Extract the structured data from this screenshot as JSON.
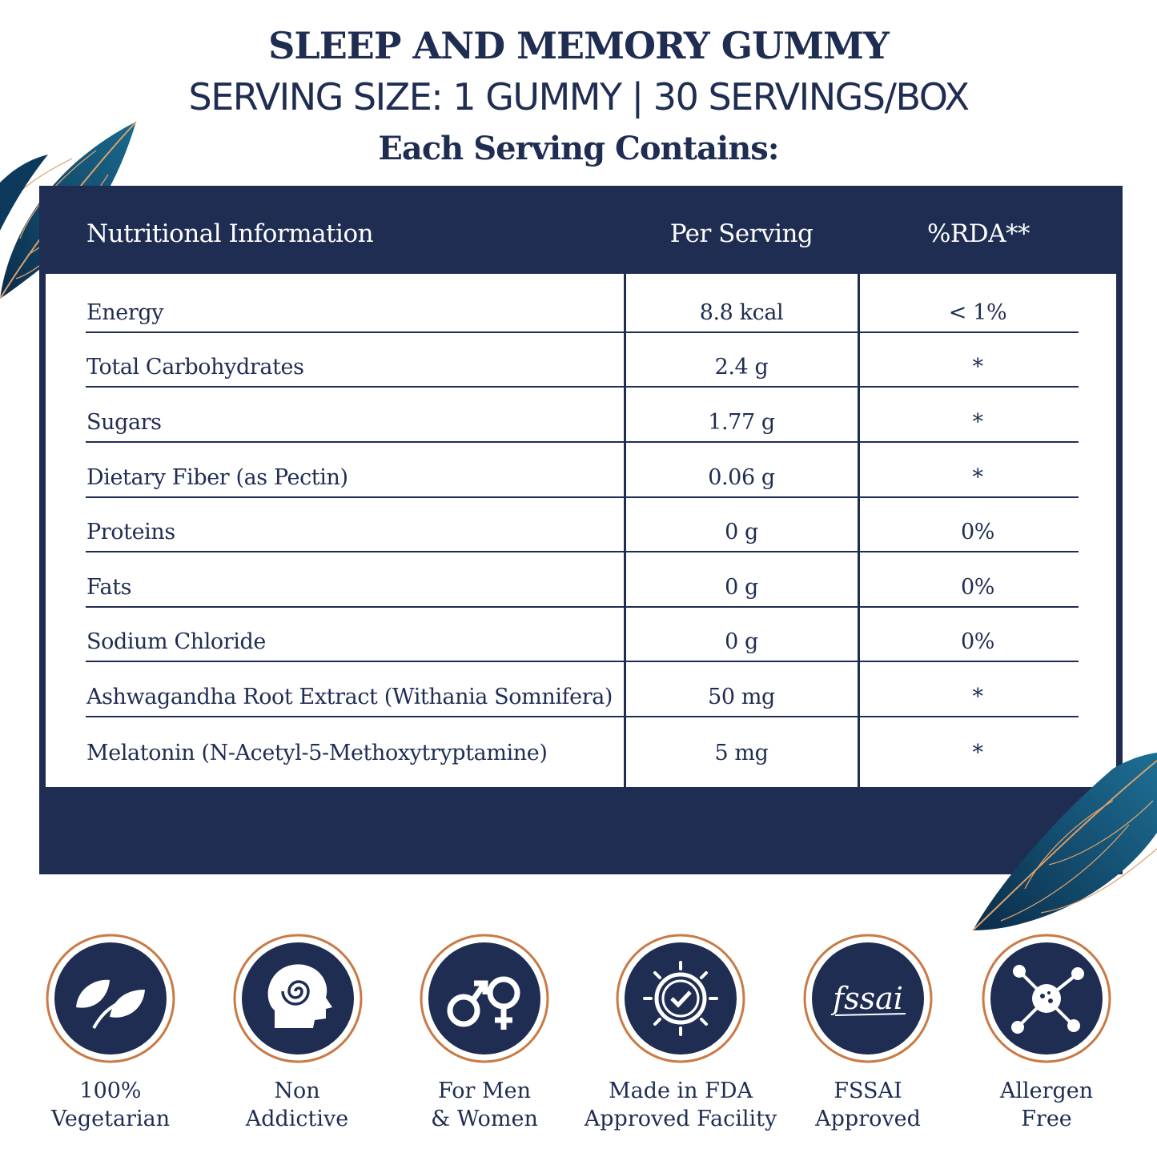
{
  "header": {
    "title": "SLEEP AND MEMORY GUMMY",
    "serving_line": "SERVING SIZE: 1 GUMMY | 30 SERVINGS/BOX",
    "subheading": "Each Serving Contains:"
  },
  "table": {
    "columns": [
      "Nutritional Information",
      "Per Serving",
      "%RDA**"
    ],
    "rows": [
      {
        "name": "Energy",
        "per_serving": "8.8 kcal",
        "rda": "< 1%"
      },
      {
        "name": "Total Carbohydrates",
        "per_serving": "2.4 g",
        "rda": "*"
      },
      {
        "name": "Sugars",
        "per_serving": "1.77 g",
        "rda": "*"
      },
      {
        "name": "Dietary Fiber (as Pectin)",
        "per_serving": "0.06 g",
        "rda": "*"
      },
      {
        "name": "Proteins",
        "per_serving": "0 g",
        "rda": "0%"
      },
      {
        "name": "Fats",
        "per_serving": "0 g",
        "rda": "0%"
      },
      {
        "name": "Sodium Chloride",
        "per_serving": "0 g",
        "rda": "0%"
      },
      {
        "name": "Ashwagandha Root Extract (Withania Somnifera)",
        "per_serving": "50 mg",
        "rda": "*"
      },
      {
        "name": "Melatonin (N-Acetyl-5-Methoxytryptamine)",
        "per_serving": "5 mg",
        "rda": "*"
      }
    ]
  },
  "badges": [
    {
      "icon": "leaves-icon",
      "line1": "100%",
      "line2": "Vegetarian"
    },
    {
      "icon": "head-spiral-icon",
      "line1": "Non",
      "line2": "Addictive"
    },
    {
      "icon": "gender-symbols-icon",
      "line1": "For Men",
      "line2": "& Women"
    },
    {
      "icon": "sun-check-icon",
      "line1": "Made in FDA",
      "line2": "Approved Facility"
    },
    {
      "icon": "fssai-logo-icon",
      "line1": "FSSAI",
      "line2": "Approved",
      "logo_text": "fssai"
    },
    {
      "icon": "molecule-icon",
      "line1": "Allergen",
      "line2": "Free"
    }
  ],
  "colors": {
    "navy": "#1f2d52",
    "copper": "#c97a45",
    "leaf_teal": "#0f4a6e",
    "gold": "#d9a06b"
  }
}
